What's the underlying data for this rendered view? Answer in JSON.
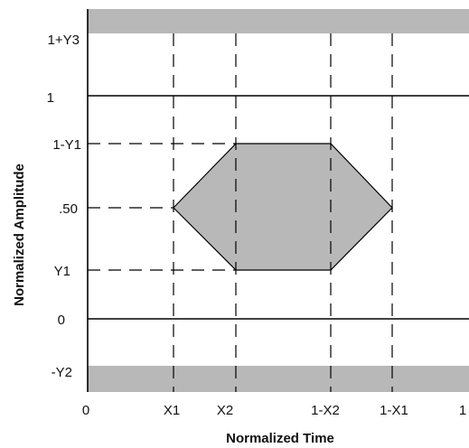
{
  "diagram": {
    "x_axis_title": "Normalized Time",
    "y_axis_title": "Normalized Amplitude",
    "y_labels": {
      "top": "1+Y3",
      "one": "1",
      "upper": "1-Y1",
      "mid": ".50",
      "lower": "Y1",
      "zero": "0",
      "bottom": "-Y2"
    },
    "x_labels": {
      "zero": "0",
      "x1": "X1",
      "x2": "X2",
      "one_minus_x2": "1-X2",
      "one_minus_x1": "1-X1",
      "one": "1"
    },
    "colors": {
      "fill": "#b8b8b8",
      "line": "#000000",
      "background": "#ffffff"
    }
  }
}
